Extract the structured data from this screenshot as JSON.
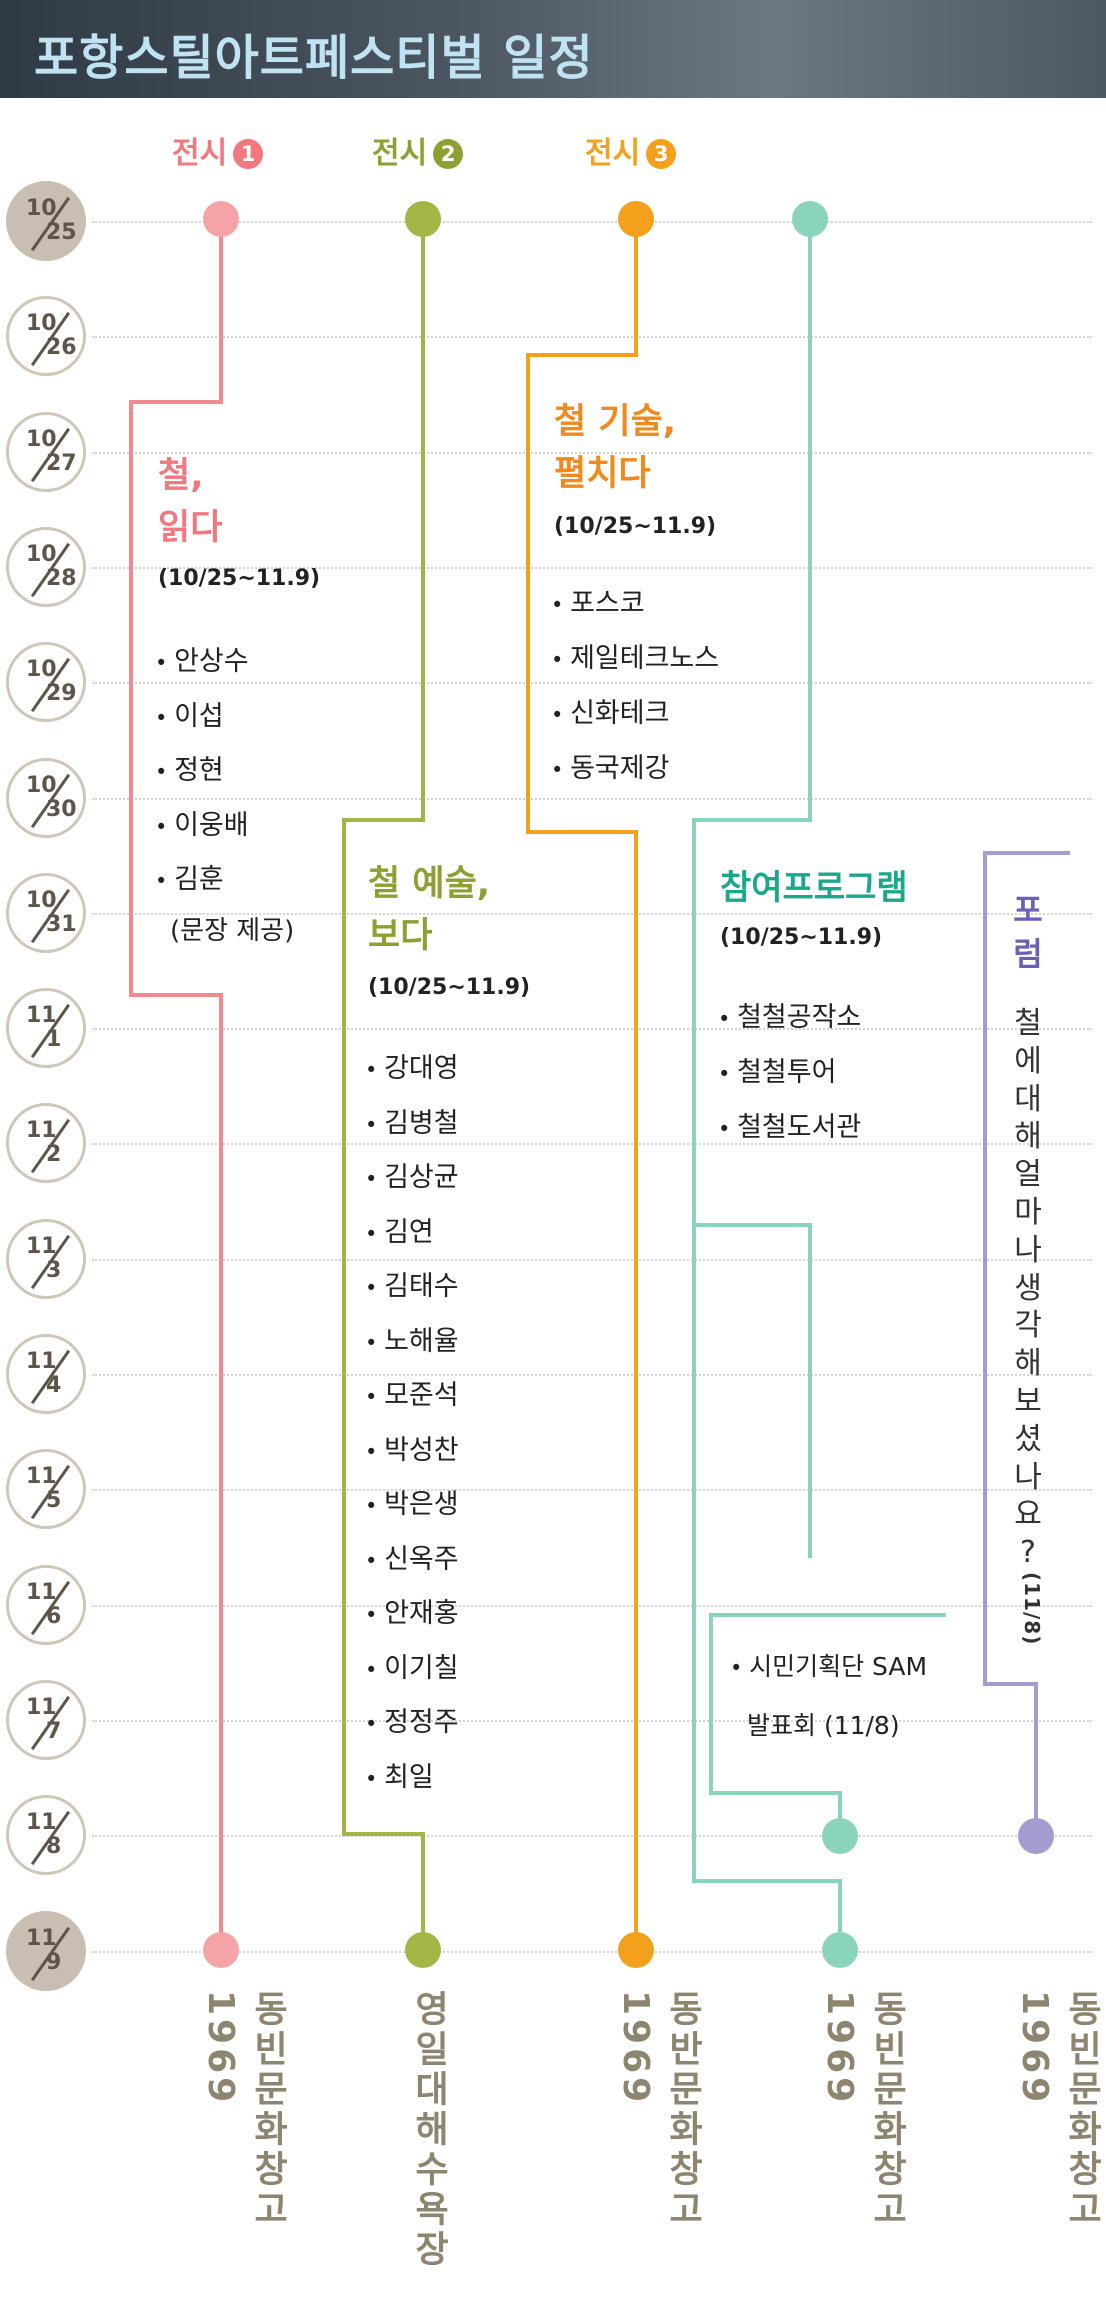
{
  "header": {
    "title": "포항스틸아트페스티벌 일정"
  },
  "column_labels": [
    {
      "text": "전시",
      "number": "1",
      "color": "#f2777f"
    },
    {
      "text": "전시",
      "number": "2",
      "color": "#8fa032"
    },
    {
      "text": "전시",
      "number": "3",
      "color": "#f5a01c"
    }
  ],
  "dates": [
    {
      "m": "10",
      "d": "25"
    },
    {
      "m": "10",
      "d": "26"
    },
    {
      "m": "10",
      "d": "27"
    },
    {
      "m": "10",
      "d": "28"
    },
    {
      "m": "10",
      "d": "29"
    },
    {
      "m": "10",
      "d": "30"
    },
    {
      "m": "10",
      "d": "31"
    },
    {
      "m": "11",
      "d": "1"
    },
    {
      "m": "11",
      "d": "2"
    },
    {
      "m": "11",
      "d": "3"
    },
    {
      "m": "11",
      "d": "4"
    },
    {
      "m": "11",
      "d": "5"
    },
    {
      "m": "11",
      "d": "6"
    },
    {
      "m": "11",
      "d": "7"
    },
    {
      "m": "11",
      "d": "8"
    },
    {
      "m": "11",
      "d": "9"
    }
  ],
  "exhibit1": {
    "title_line1": "철,",
    "title_line2": "읽다",
    "period": "(10/25~11.9)",
    "items": [
      "안상수",
      "이섭",
      "정현",
      "이웅배",
      "김훈"
    ],
    "note": "(문장 제공)",
    "venue": "동빈문화창고 1969",
    "color": "#f08a8e"
  },
  "exhibit2": {
    "title_line1": "철 예술,",
    "title_line2": "보다",
    "period": "(10/25~11.9)",
    "items": [
      "강대영",
      "김병철",
      "김상균",
      "김연",
      "김태수",
      "노해율",
      "모준석",
      "박성찬",
      "박은생",
      "신옥주",
      "안재홍",
      "이기칠",
      "정정주",
      "최일"
    ],
    "venue": "영일대해수욕장",
    "color": "#a3b645"
  },
  "exhibit3": {
    "title_line1": "철 기술,",
    "title_line2": "펼치다",
    "period": "(10/25~11.9)",
    "items": [
      "포스코",
      "제일테크노스",
      "신화테크",
      "동국제강"
    ],
    "venue": "동반문화창고 1969",
    "color": "#f5a01c"
  },
  "program": {
    "title": "참여프로그램",
    "period": "(10/25~11.9)",
    "items": [
      "철철공작소",
      "철철투어",
      "철철도서관"
    ],
    "sam_line1": "시민기획단 SAM",
    "sam_line2": "발표회 (11/8)",
    "venue": "동빈문화창고 1969",
    "color": "#8bd4bc"
  },
  "forum": {
    "title_chars": [
      "포",
      "럼"
    ],
    "question_chars": [
      "철",
      "에",
      "대",
      "해",
      "얼",
      "마",
      "나",
      "생",
      "각",
      "해",
      "보",
      "셨",
      "나",
      "요",
      "?"
    ],
    "date": "(11/8)",
    "venue": "동빈문화창고 1969",
    "color": "#a39ccf"
  }
}
